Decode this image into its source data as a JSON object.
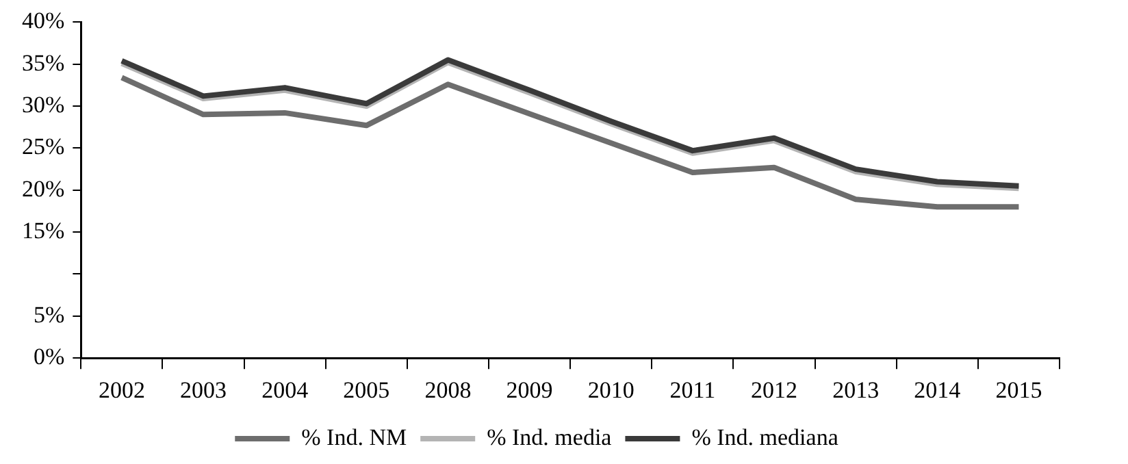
{
  "chart_data": {
    "type": "line",
    "categories": [
      "2002",
      "2003",
      "2004",
      "2005",
      "2008",
      "2009",
      "2010",
      "2011",
      "2012",
      "2013",
      "2014",
      "2015"
    ],
    "series": [
      {
        "name": "% Ind. NM",
        "color": "#6d6d6d",
        "values": [
          33.4,
          29.0,
          29.2,
          27.7,
          32.6,
          29.1,
          25.6,
          22.1,
          22.7,
          18.9,
          18.0,
          18.0
        ]
      },
      {
        "name": "% Ind. media",
        "color": "#b4b4b4",
        "values": [
          35.1,
          30.9,
          31.9,
          30.0,
          35.2,
          31.6,
          27.9,
          24.4,
          25.9,
          22.2,
          20.7,
          20.2
        ]
      },
      {
        "name": "% Ind. mediana",
        "color": "#3a3a3a",
        "values": [
          35.4,
          31.2,
          32.2,
          30.3,
          35.5,
          31.9,
          28.2,
          24.7,
          26.2,
          22.5,
          21.0,
          20.5
        ]
      }
    ],
    "ylim": [
      0,
      40
    ],
    "yticks": [
      {
        "value": 0,
        "label": "0%"
      },
      {
        "value": 5,
        "label": "5%"
      },
      {
        "value": 10,
        "label": null
      },
      {
        "value": 15,
        "label": "15%"
      },
      {
        "value": 20,
        "label": "20%"
      },
      {
        "value": 25,
        "label": "25%"
      },
      {
        "value": 30,
        "label": "30%"
      },
      {
        "value": 35,
        "label": "35%"
      },
      {
        "value": 40,
        "label": "40%"
      }
    ],
    "grid": false,
    "legend": "bottom",
    "marker": "none",
    "line_style": "solid"
  }
}
